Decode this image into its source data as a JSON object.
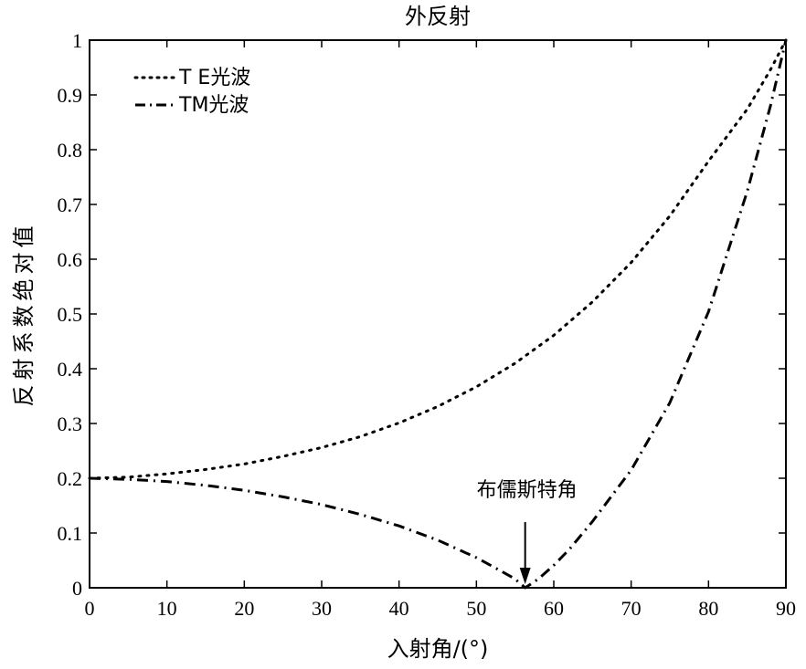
{
  "chart_data": {
    "type": "line",
    "title": "外反射",
    "xlabel": "入射角/(°)",
    "ylabel": "反射系数绝对值",
    "xlim": [
      0,
      90
    ],
    "ylim": [
      0,
      1
    ],
    "xticks": [
      0,
      10,
      20,
      30,
      40,
      50,
      60,
      70,
      80,
      90
    ],
    "yticks": [
      0,
      0.1,
      0.2,
      0.3,
      0.4,
      0.5,
      0.6,
      0.7,
      0.8,
      0.9,
      1
    ],
    "ytick_labels": [
      "0",
      "0.1",
      "0.2",
      "0.3",
      "0.4",
      "0.5",
      "0.6",
      "0.7",
      "0.8",
      "0.9",
      "1"
    ],
    "grid": false,
    "legend_position": "top-left",
    "series": [
      {
        "name": "T E光波",
        "style": "dotted",
        "color": "#000000",
        "x": [
          0,
          5,
          10,
          15,
          20,
          25,
          30,
          35,
          40,
          45,
          50,
          55,
          60,
          65,
          70,
          75,
          80,
          85,
          88,
          90
        ],
        "values": [
          0.2,
          0.202,
          0.208,
          0.216,
          0.226,
          0.24,
          0.256,
          0.276,
          0.301,
          0.331,
          0.367,
          0.41,
          0.461,
          0.522,
          0.594,
          0.679,
          0.779,
          0.874,
          0.946,
          1.0
        ]
      },
      {
        "name": "TM光波",
        "style": "dash-dot",
        "color": "#000000",
        "x": [
          0,
          5,
          10,
          15,
          20,
          25,
          30,
          35,
          40,
          45,
          50,
          53,
          55,
          56.3,
          58,
          60,
          62,
          65,
          70,
          75,
          80,
          85,
          88,
          90
        ],
        "values": [
          0.2,
          0.198,
          0.194,
          0.187,
          0.178,
          0.166,
          0.152,
          0.134,
          0.113,
          0.087,
          0.055,
          0.032,
          0.016,
          0.0,
          0.016,
          0.041,
          0.07,
          0.121,
          0.215,
          0.338,
          0.504,
          0.724,
          0.88,
          1.0
        ]
      }
    ],
    "annotations": [
      {
        "text": "布儒斯特角",
        "x": 56.3,
        "y": 0.0,
        "arrow": true
      }
    ]
  }
}
